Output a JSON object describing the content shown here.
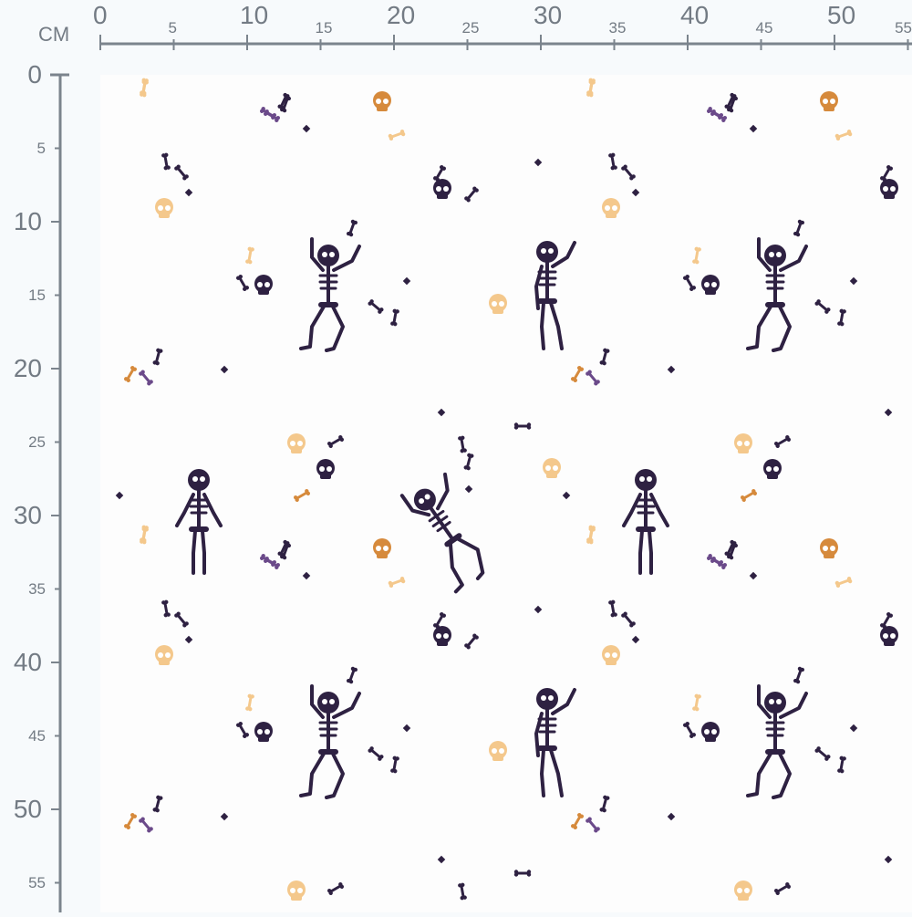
{
  "ruler": {
    "unit": "CM",
    "horizontal_labels": [
      "0",
      "5",
      "10",
      "15",
      "20",
      "25",
      "30",
      "35",
      "40",
      "45",
      "50",
      "55"
    ],
    "vertical_labels": [
      "0",
      "5",
      "10",
      "15",
      "20",
      "25",
      "30",
      "35",
      "40",
      "45",
      "50",
      "55"
    ]
  },
  "fabric": {
    "motifs": [
      "skeleton",
      "skull",
      "bone",
      "diamond"
    ],
    "colors": {
      "background": "#fdfdfd",
      "dark_purple": "#2e2142",
      "violet": "#6b4a8a",
      "orange": "#d68a3c",
      "light_orange": "#f4c88c",
      "ruler": "#7b848d"
    }
  }
}
